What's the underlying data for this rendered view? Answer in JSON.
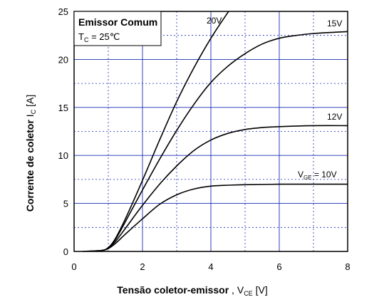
{
  "chart_data": {
    "type": "line",
    "annotation": {
      "title": "Emissor Comum",
      "condition_symbol": "T",
      "condition_sub": "C",
      "condition_value": " = 25℃"
    },
    "xlabel": {
      "text": "Tensão coletor-emissor",
      "symbol": " , V",
      "sub": "CE",
      "unit": " [V]"
    },
    "ylabel": {
      "text": "Corrente de coletor",
      "symbol": "I",
      "sub": "C",
      "unit": " [A]"
    },
    "xlim": [
      0,
      8
    ],
    "ylim": [
      0,
      25
    ],
    "x_ticks": [
      0,
      2,
      4,
      6,
      8
    ],
    "y_ticks": [
      0,
      5,
      10,
      15,
      20,
      25
    ],
    "grid": true,
    "series": [
      {
        "name": "20V",
        "label_parts": [
          {
            "t": "20V"
          }
        ],
        "points": [
          [
            0.25,
            0
          ],
          [
            0.8,
            0.1
          ],
          [
            1.0,
            0.4
          ],
          [
            1.2,
            1.3
          ],
          [
            1.5,
            3.4
          ],
          [
            2.0,
            7.4
          ],
          [
            2.5,
            11.6
          ],
          [
            3.0,
            15.6
          ],
          [
            3.5,
            19.1
          ],
          [
            4.0,
            22.2
          ],
          [
            4.5,
            24.9
          ],
          [
            4.6,
            25.3
          ]
        ]
      },
      {
        "name": "15V",
        "label_parts": [
          {
            "t": "15V"
          }
        ],
        "points": [
          [
            0.25,
            0
          ],
          [
            0.8,
            0.1
          ],
          [
            1.0,
            0.4
          ],
          [
            1.2,
            1.2
          ],
          [
            1.5,
            3.1
          ],
          [
            2.0,
            6.4
          ],
          [
            2.5,
            9.6
          ],
          [
            3.0,
            12.6
          ],
          [
            3.5,
            15.3
          ],
          [
            4.0,
            17.6
          ],
          [
            4.5,
            19.3
          ],
          [
            5.0,
            20.6
          ],
          [
            5.5,
            21.6
          ],
          [
            6.0,
            22.2
          ],
          [
            6.5,
            22.5
          ],
          [
            7.0,
            22.7
          ],
          [
            8.0,
            22.9
          ]
        ]
      },
      {
        "name": "12V",
        "label_parts": [
          {
            "t": "12V"
          }
        ],
        "points": [
          [
            0.25,
            0
          ],
          [
            0.8,
            0.1
          ],
          [
            1.0,
            0.35
          ],
          [
            1.2,
            1.0
          ],
          [
            1.5,
            2.4
          ],
          [
            2.0,
            4.8
          ],
          [
            2.5,
            7.0
          ],
          [
            3.0,
            8.9
          ],
          [
            3.5,
            10.5
          ],
          [
            4.0,
            11.6
          ],
          [
            4.5,
            12.3
          ],
          [
            5.0,
            12.7
          ],
          [
            5.5,
            12.9
          ],
          [
            6.0,
            13.0
          ],
          [
            7.0,
            13.1
          ],
          [
            8.0,
            13.1
          ]
        ]
      },
      {
        "name": "VGE = 10V",
        "label_parts": [
          {
            "t": "V"
          },
          {
            "t": "GE",
            "sub": true
          },
          {
            "t": " = 10V"
          }
        ],
        "points": [
          [
            0.25,
            0
          ],
          [
            0.8,
            0.1
          ],
          [
            1.0,
            0.3
          ],
          [
            1.2,
            0.8
          ],
          [
            1.5,
            1.8
          ],
          [
            2.0,
            3.4
          ],
          [
            2.5,
            4.9
          ],
          [
            3.0,
            5.9
          ],
          [
            3.5,
            6.5
          ],
          [
            4.0,
            6.8
          ],
          [
            4.5,
            6.9
          ],
          [
            5.0,
            6.95
          ],
          [
            6.0,
            7.0
          ],
          [
            8.0,
            7.0
          ]
        ]
      }
    ]
  }
}
